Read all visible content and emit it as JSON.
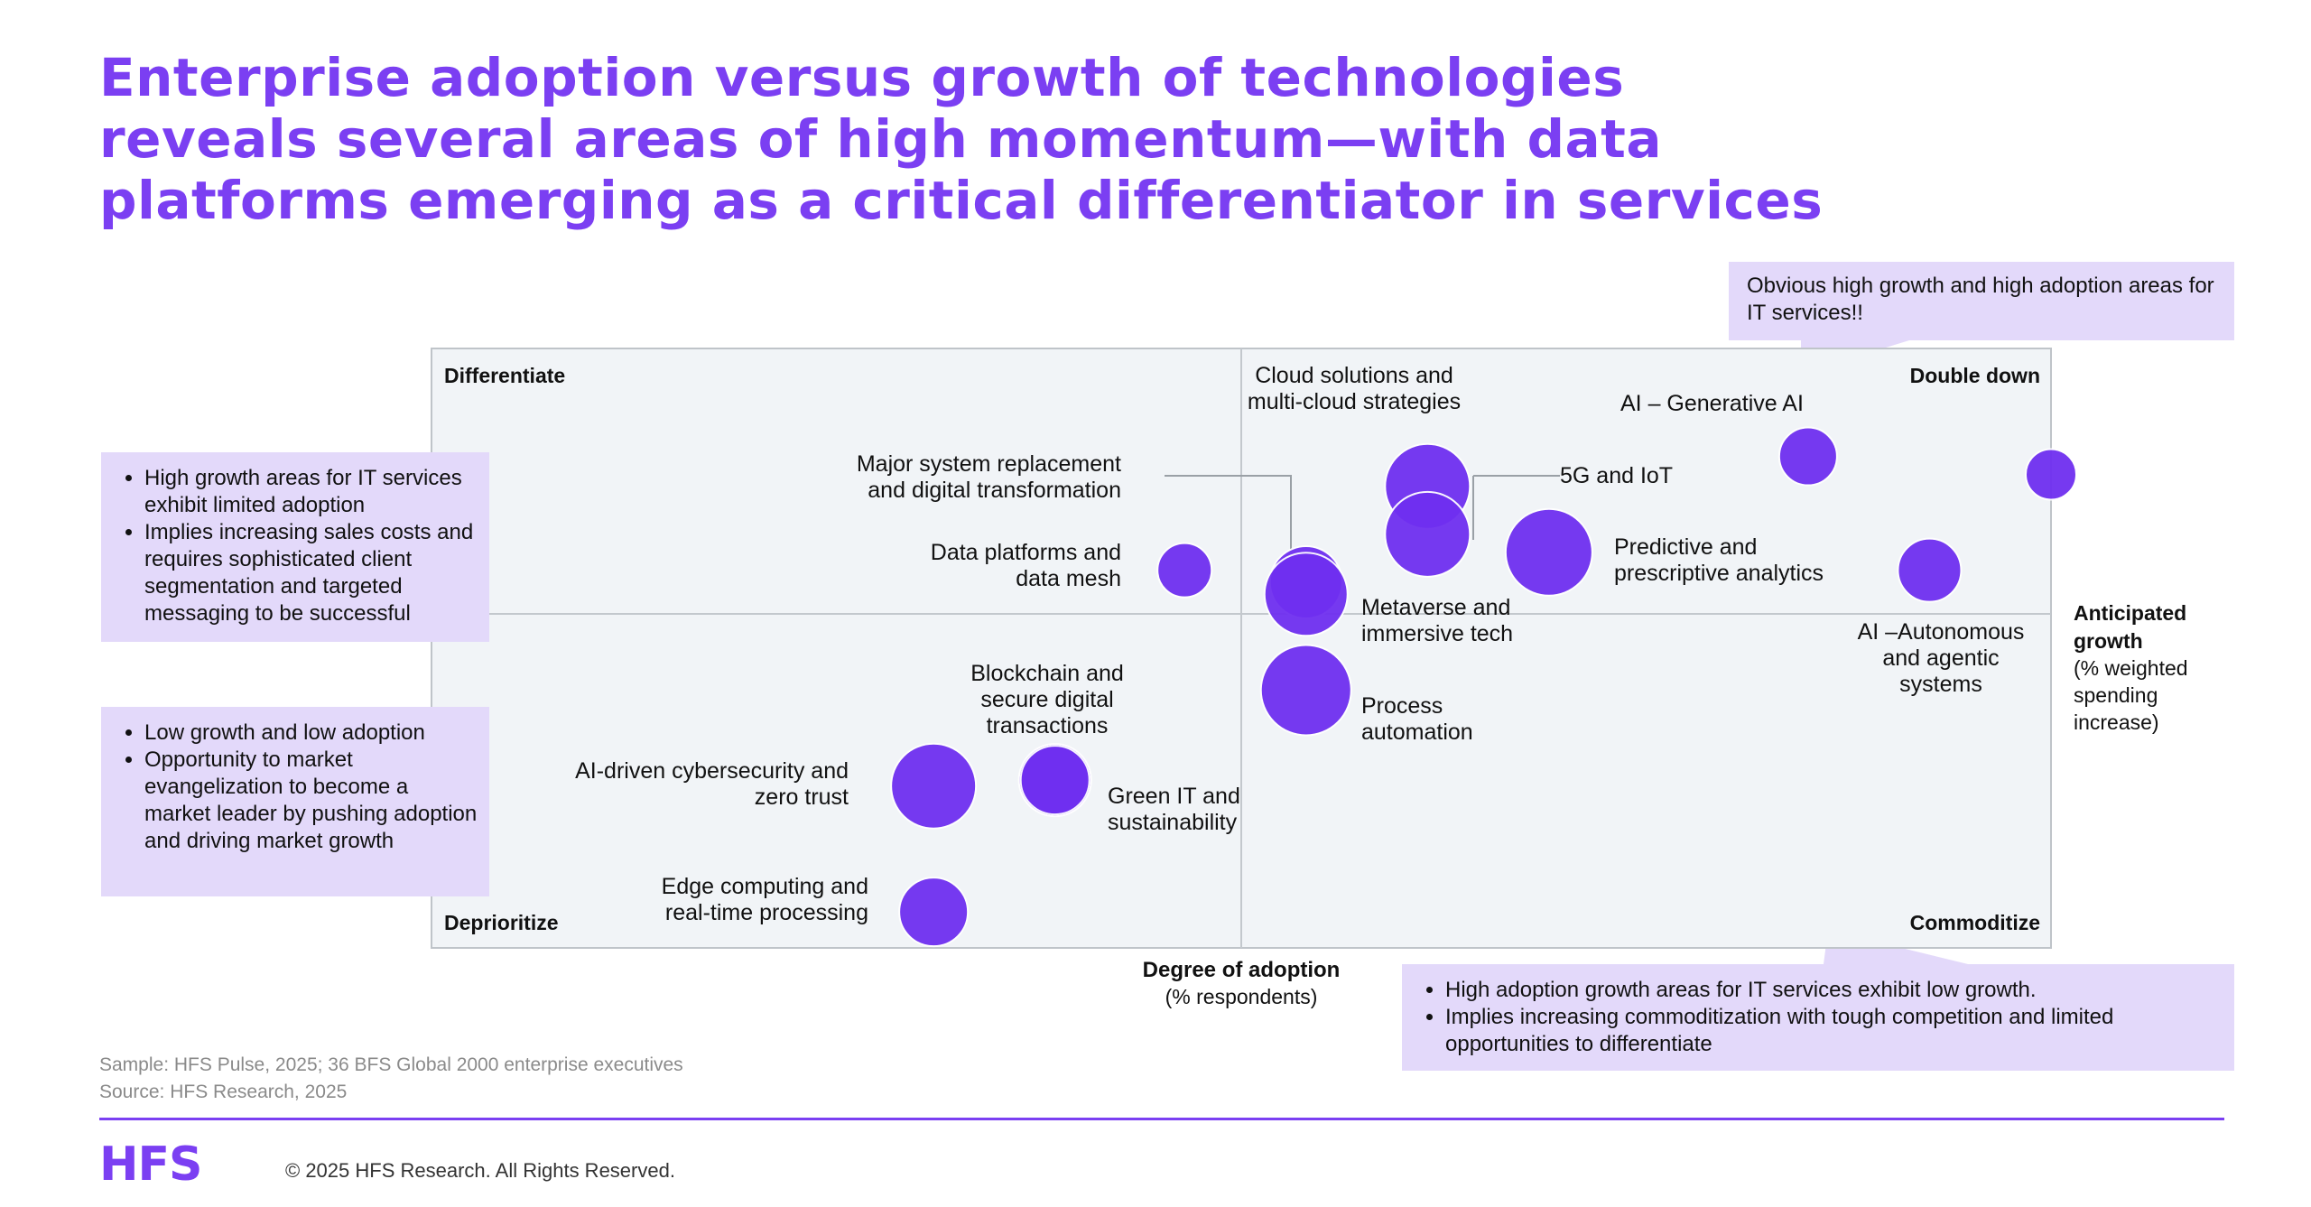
{
  "title_lines": [
    "Enterprise adoption versus growth of technologies",
    "reveals several areas of high momentum—with data",
    "platforms emerging as a critical differentiator in services"
  ],
  "colors": {
    "accent": "#7b3ff2",
    "bubble": "#6f2ff0",
    "callout_bg": "#e3d9fa",
    "plot_bg": "#f1f4f7"
  },
  "chart_data": {
    "type": "scatter",
    "xlabel": [
      "Degree of adoption",
      "(% respondents)"
    ],
    "ylabel": [
      "Anticipated",
      "growth",
      "(% weighted",
      "spending",
      "increase)"
    ],
    "quadrants": {
      "top_left": "Differentiate",
      "top_right": "Double down",
      "bottom_left": "Deprioritize",
      "bottom_right": "Commoditize"
    },
    "xlim": [
      0,
      100
    ],
    "ylim": [
      0,
      100
    ],
    "points": [
      {
        "label": [
          "Cloud solutions and",
          "multi-cloud strategies"
        ],
        "x": 61.5,
        "y": 77,
        "size": 47
      },
      {
        "label": [
          "AI – Generative AI"
        ],
        "x": 85,
        "y": 82,
        "size": 32
      },
      {
        "label": [
          "5G and IoT"
        ],
        "x": 61.5,
        "y": 69,
        "size": 47
      },
      {
        "label": [
          "Major system replacement",
          "and digital transformation"
        ],
        "x": 54,
        "y": 61,
        "size": 40
      },
      {
        "label": [
          "Data platforms and",
          "data mesh"
        ],
        "x": 46.5,
        "y": 63,
        "size": 30
      },
      {
        "label": [
          "Predictive and",
          "prescriptive analytics"
        ],
        "x": 69,
        "y": 66,
        "size": 48
      },
      {
        "label": [
          "AI –Autonomous",
          "and agentic",
          "systems"
        ],
        "x": 92.5,
        "y": 63,
        "size": 35
      },
      {
        "label": [
          ""
        ],
        "x": 100,
        "y": 79,
        "size": 28
      },
      {
        "label": [
          "Metaverse and",
          "immersive tech"
        ],
        "x": 54,
        "y": 59,
        "size": 46
      },
      {
        "label": [
          "Process",
          "automation"
        ],
        "x": 54,
        "y": 43,
        "size": 50
      },
      {
        "label": [
          "Blockchain and",
          "secure digital",
          "transactions"
        ],
        "x": 38.5,
        "y": 28,
        "size": 40
      },
      {
        "label": [
          "AI-driven cybersecurity and",
          "zero trust"
        ],
        "x": 31,
        "y": 27,
        "size": 47
      },
      {
        "label": [
          "Green IT and",
          "sustainability"
        ],
        "x": 38.5,
        "y": 28,
        "size": 38
      },
      {
        "label": [
          "Edge computing and",
          "real-time processing"
        ],
        "x": 31,
        "y": 6,
        "size": 38
      }
    ]
  },
  "callouts": {
    "top_right": "Obvious high growth and high adoption areas for IT services!!",
    "left_top": [
      "High growth areas for IT services exhibit limited adoption",
      "Implies increasing sales costs and requires sophisticated client segmentation and targeted messaging to be successful"
    ],
    "left_bottom": [
      "Low growth and low adoption",
      "Opportunity to market evangelization to become a market leader by pushing adoption and driving market growth"
    ],
    "bottom_right": [
      "High adoption growth areas for IT services exhibit low growth.",
      "Implies increasing commoditization with tough competition and limited opportunities to differentiate"
    ]
  },
  "footnotes": {
    "sample": "Sample: HFS Pulse, 2025; 36 BFS Global 2000 enterprise executives",
    "source": "Source: HFS Research, 2025"
  },
  "footer": {
    "logo": "HFS",
    "copyright": "© 2025 HFS Research. All Rights Reserved."
  }
}
